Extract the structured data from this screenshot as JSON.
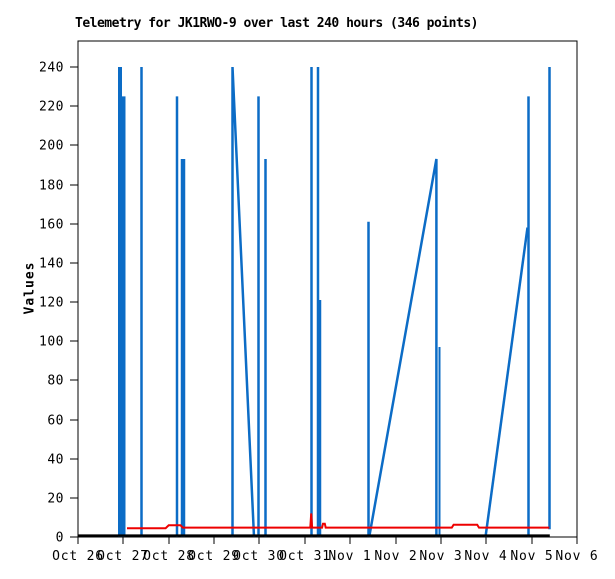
{
  "title": "Telemetry for JK1RWO-9 over last 240 hours (346 points)",
  "y_axis": {
    "label": "Values",
    "ticks": [
      0,
      20,
      40,
      60,
      80,
      100,
      120,
      140,
      160,
      180,
      200,
      220,
      240
    ]
  },
  "x_axis": {
    "tick_labels": [
      "Oct 26",
      "Oct 27",
      "Oct 28",
      "Oct 29",
      "Oct 30",
      "Oct 31",
      "Nov 1",
      "Nov 2",
      "Nov 3",
      "Nov 4",
      "Nov 5",
      "Nov 6"
    ]
  },
  "chart_data": {
    "type": "line",
    "title": "Telemetry for JK1RWO-9 over last 240 hours (346 points)",
    "xlabel": "",
    "ylabel": "Values",
    "x_unit": "days since Oct 26",
    "xlim": [
      0,
      11
    ],
    "ylim": [
      0,
      253
    ],
    "grid": false,
    "legend": "none",
    "frame_color": "#000000",
    "background": "#ffffff",
    "series": [
      {
        "name": "telemetry-channel-blue",
        "color": "#0c6cc6",
        "segments": [
          {
            "w": 4,
            "pts": [
              [
                0.926,
                0
              ],
              [
                0.926,
                240
              ]
            ]
          },
          {
            "w": 4,
            "pts": [
              [
                1.003,
                0
              ],
              [
                1.003,
                225
              ]
            ]
          },
          {
            "w": 2.5,
            "pts": [
              [
                1.4,
                0
              ],
              [
                1.4,
                240
              ]
            ]
          },
          {
            "w": 2.5,
            "pts": [
              [
                2.182,
                0
              ],
              [
                2.182,
                225
              ]
            ]
          },
          {
            "w": 4.5,
            "pts": [
              [
                2.315,
                0
              ],
              [
                2.315,
                193
              ]
            ]
          },
          {
            "w": 2.5,
            "pts": [
              [
                3.406,
                0
              ],
              [
                3.406,
                240
              ],
              [
                3.879,
                0
              ]
            ]
          },
          {
            "w": 2.5,
            "pts": [
              [
                3.978,
                0
              ],
              [
                3.978,
                225
              ]
            ]
          },
          {
            "w": 2.5,
            "pts": [
              [
                4.133,
                0
              ],
              [
                4.133,
                193
              ]
            ]
          },
          {
            "w": 2.5,
            "pts": [
              [
                5.147,
                0
              ],
              [
                5.147,
                240
              ]
            ]
          },
          {
            "w": 2.5,
            "pts": [
              [
                5.29,
                0
              ],
              [
                5.29,
                240
              ]
            ]
          },
          {
            "w": 2.5,
            "pts": [
              [
                5.334,
                0
              ],
              [
                5.334,
                121
              ]
            ]
          },
          {
            "w": 2.5,
            "pts": [
              [
                6.403,
                0
              ],
              [
                6.403,
                161
              ]
            ]
          },
          {
            "w": 2.5,
            "pts": [
              [
                6.42,
                0
              ],
              [
                7.901,
                193
              ],
              [
                7.901,
                0
              ]
            ]
          },
          {
            "w": 2,
            "pts": [
              [
                7.969,
                0
              ],
              [
                7.969,
                97
              ]
            ]
          },
          {
            "w": 2.5,
            "pts": [
              [
                8.982,
                0
              ],
              [
                9.908,
                158
              ]
            ]
          },
          {
            "w": 2.5,
            "pts": [
              [
                9.93,
                0
              ],
              [
                9.93,
                225
              ]
            ]
          },
          {
            "w": 2.5,
            "pts": [
              [
                10.393,
                4
              ],
              [
                10.393,
                240
              ]
            ]
          }
        ]
      },
      {
        "name": "telemetry-channel-red",
        "color": "#ee0000",
        "segments": [
          {
            "w": 2,
            "pts": [
              [
                1.08,
                4.5
              ],
              [
                1.93,
                4.5
              ],
              [
                2.0,
                6.0
              ],
              [
                2.26,
                6.0
              ],
              [
                2.31,
                4.8
              ],
              [
                5.12,
                4.8
              ],
              [
                5.14,
                12.0
              ],
              [
                5.16,
                4.8
              ],
              [
                5.38,
                4.8
              ],
              [
                5.4,
                6.8
              ],
              [
                5.44,
                6.8
              ],
              [
                5.46,
                4.8
              ],
              [
                8.24,
                4.8
              ],
              [
                8.28,
                6.3
              ],
              [
                8.8,
                6.3
              ],
              [
                8.84,
                4.8
              ],
              [
                10.39,
                4.8
              ]
            ]
          }
        ]
      },
      {
        "name": "telemetry-channel-black",
        "color": "#000000",
        "segments": [
          {
            "w": 2.5,
            "pts": [
              [
                0.0,
                0.7
              ],
              [
                10.4,
                0.7
              ]
            ]
          }
        ]
      }
    ]
  }
}
